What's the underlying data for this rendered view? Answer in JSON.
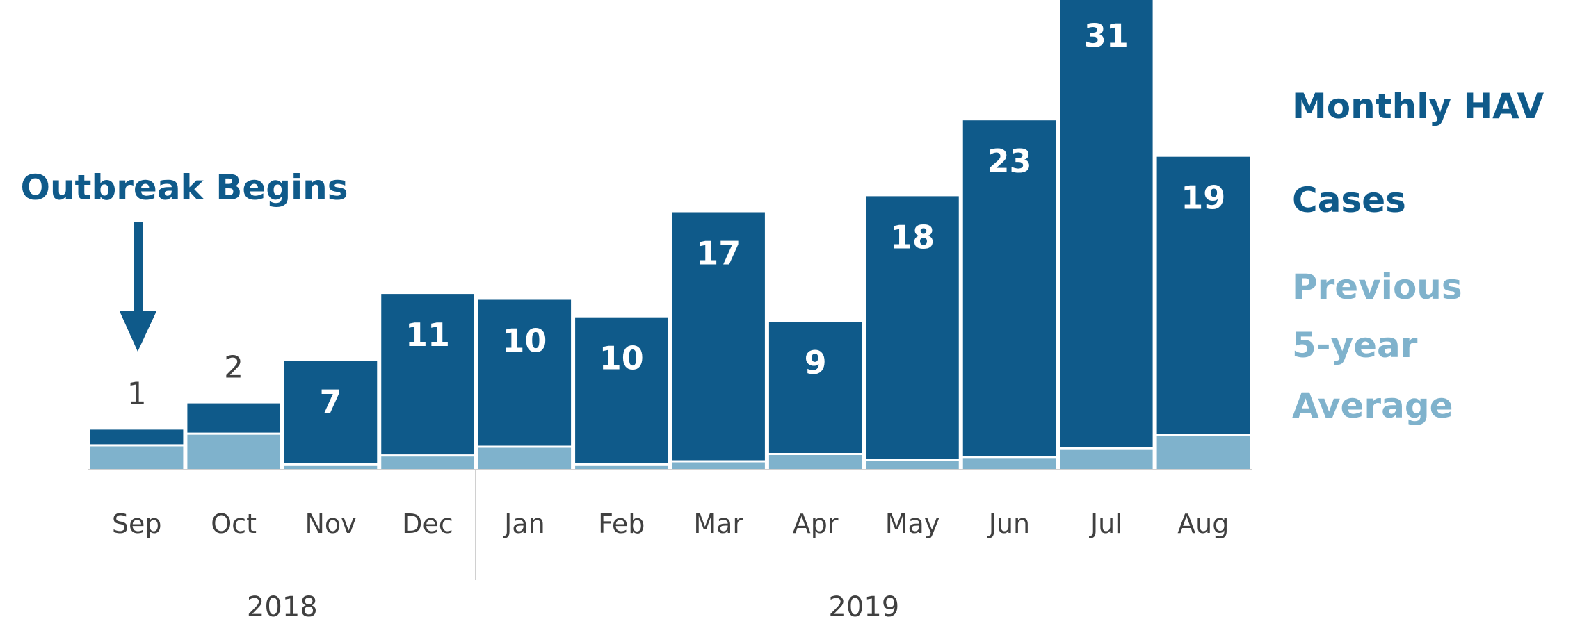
{
  "chart_data": {
    "type": "bar",
    "categories": [
      "Sep",
      "Oct",
      "Nov",
      "Dec",
      "Jan",
      "Feb",
      "Mar",
      "Apr",
      "May",
      "Jun",
      "Jul",
      "Aug"
    ],
    "year_groups": [
      {
        "label": "2018",
        "categories": [
          "Sep",
          "Oct",
          "Nov",
          "Dec"
        ]
      },
      {
        "label": "2019",
        "categories": [
          "Jan",
          "Feb",
          "Mar",
          "Apr",
          "May",
          "Jun",
          "Jul",
          "Aug"
        ]
      }
    ],
    "series": [
      {
        "name": "Monthly HAV Cases",
        "color": "#0f5a8a",
        "values": [
          1,
          2,
          7,
          11,
          10,
          10,
          17,
          9,
          18,
          23,
          31,
          19
        ]
      },
      {
        "name": "Previous 5-year Average",
        "color": "#7fb2cc",
        "values": [
          1.6,
          2.4,
          0.3,
          0.9,
          1.5,
          0.3,
          0.5,
          1.0,
          0.6,
          0.8,
          1.4,
          2.3
        ]
      }
    ],
    "value_labels": [
      "1",
      "2",
      "7",
      "11",
      "10",
      "10",
      "17",
      "9",
      "18",
      "23",
      "31",
      "19"
    ],
    "ylim": [
      0,
      31
    ],
    "legend": {
      "position": "right",
      "main_lines": [
        "Monthly HAV",
        "Cases"
      ],
      "prev_lines": [
        "Previous",
        "5-year",
        "Average"
      ]
    },
    "annotation": {
      "text": "Outbreak Begins",
      "category": "Sep"
    }
  }
}
